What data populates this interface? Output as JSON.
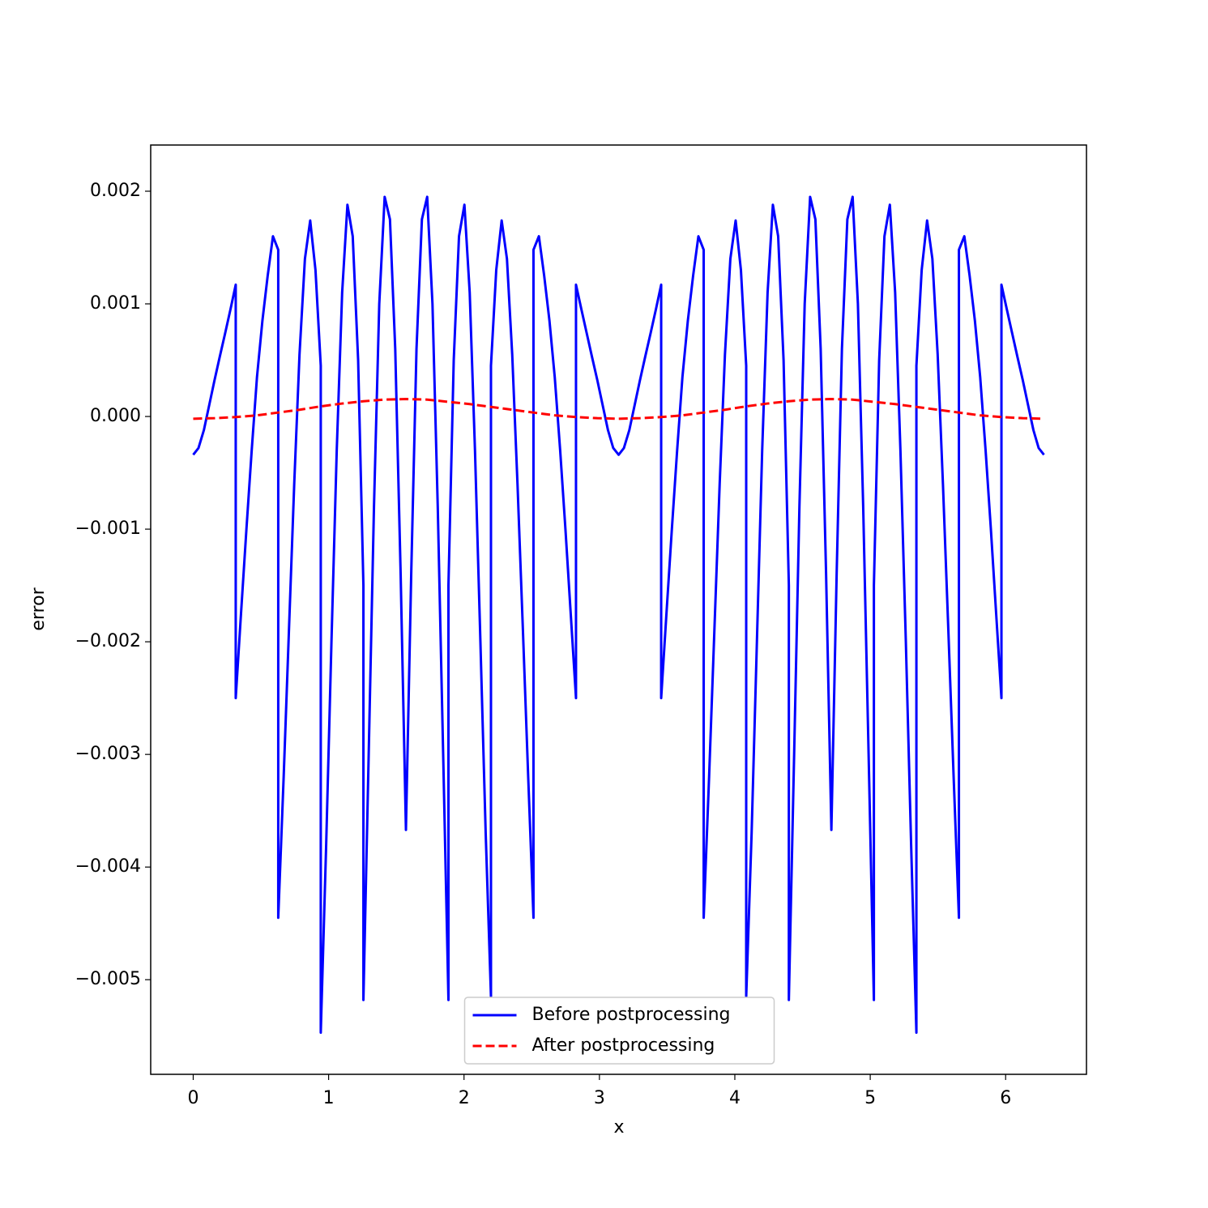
{
  "chart_data": {
    "type": "line",
    "xlabel": "x",
    "ylabel": "error",
    "xlim": [
      -0.314,
      6.597
    ],
    "ylim": [
      -0.00584,
      0.00241
    ],
    "xticks": [
      0,
      1,
      2,
      3,
      4,
      5,
      6
    ],
    "yticks": [
      {
        "value": -0.005,
        "label": "−0.005"
      },
      {
        "value": -0.004,
        "label": "−0.004"
      },
      {
        "value": -0.003,
        "label": "−0.003"
      },
      {
        "value": -0.002,
        "label": "−0.002"
      },
      {
        "value": -0.001,
        "label": "−0.001"
      },
      {
        "value": 0,
        "label": "0.000"
      },
      0.001,
      0.002
    ],
    "legend": "lower center",
    "series": [
      {
        "name": "Before postprocessing",
        "color": "#0000ff",
        "linestyle": "solid",
        "x": [
          0,
          0.039,
          0.079,
          0.118,
          0.157,
          0.196,
          0.236,
          0.275,
          0.314,
          0.314,
          0.353,
          0.393,
          0.432,
          0.471,
          0.511,
          0.55,
          0.589,
          0.628,
          0.628,
          0.668,
          0.707,
          0.746,
          0.785,
          0.825,
          0.864,
          0.903,
          0.942,
          0.942,
          0.982,
          1.021,
          1.06,
          1.1,
          1.139,
          1.178,
          1.218,
          1.257,
          1.257,
          1.296,
          1.335,
          1.374,
          1.414,
          1.453,
          1.492,
          1.532,
          1.571,
          1.571,
          1.61,
          1.649,
          1.689,
          1.728,
          1.767,
          1.806,
          1.846,
          1.885,
          1.885,
          1.924,
          1.963,
          2.003,
          2.042,
          2.081,
          2.121,
          2.16,
          2.199,
          2.199,
          2.238,
          2.278,
          2.317,
          2.356,
          2.395,
          2.435,
          2.474,
          2.513,
          2.513,
          2.553,
          2.592,
          2.631,
          2.67,
          2.71,
          2.749,
          2.788,
          2.827,
          2.827,
          2.867,
          2.906,
          2.945,
          2.985,
          3.024,
          3.063,
          3.102,
          3.142,
          3.142,
          3.181,
          3.221,
          3.26,
          3.299,
          3.338,
          3.378,
          3.417,
          3.456,
          3.456,
          3.495,
          3.535,
          3.574,
          3.613,
          3.653,
          3.692,
          3.731,
          3.77,
          3.77,
          3.81,
          3.849,
          3.888,
          3.927,
          3.967,
          4.006,
          4.045,
          4.084,
          4.084,
          4.124,
          4.163,
          4.202,
          4.242,
          4.281,
          4.32,
          4.36,
          4.399,
          4.399,
          4.438,
          4.477,
          4.516,
          4.556,
          4.595,
          4.634,
          4.674,
          4.713,
          4.713,
          4.752,
          4.791,
          4.831,
          4.87,
          4.909,
          4.948,
          4.988,
          5.027,
          5.027,
          5.066,
          5.105,
          5.145,
          5.184,
          5.223,
          5.263,
          5.302,
          5.341,
          5.341,
          5.38,
          5.42,
          5.459,
          5.498,
          5.537,
          5.577,
          5.616,
          5.655,
          5.655,
          5.695,
          5.734,
          5.773,
          5.812,
          5.852,
          5.891,
          5.93,
          5.969,
          5.969,
          6.009,
          6.048,
          6.087,
          6.127,
          6.166,
          6.205,
          6.244,
          6.283
        ],
        "values": [
          -0.00034,
          -0.00028,
          -0.00012,
          0.0001,
          0.00032,
          0.00053,
          0.00074,
          0.00095,
          0.00117,
          -0.0025,
          -0.00175,
          -0.001,
          -0.0003,
          0.00035,
          0.00085,
          0.00125,
          0.0016,
          0.00148,
          -0.00445,
          -0.0032,
          -0.0019,
          -0.0006,
          0.00055,
          0.0014,
          0.00174,
          0.0013,
          0.00045,
          -0.00547,
          -0.0038,
          -0.002,
          -0.0003,
          0.0011,
          0.00188,
          0.0016,
          0.0005,
          -0.0015,
          -0.00518,
          -0.003,
          -0.0008,
          0.001,
          0.00195,
          0.00175,
          0.0006,
          -0.0014,
          -0.00367,
          -0.00367,
          -0.0014,
          0.0006,
          0.00175,
          0.00195,
          0.001,
          -0.0008,
          -0.003,
          -0.00518,
          -0.0015,
          0.0005,
          0.0016,
          0.00188,
          0.0011,
          -0.0003,
          -0.002,
          -0.0037,
          -0.00515,
          0.00045,
          0.0013,
          0.00174,
          0.0014,
          0.00055,
          -0.0006,
          -0.0019,
          -0.0032,
          -0.00445,
          0.00148,
          0.0016,
          0.00125,
          0.00085,
          0.00035,
          -0.0003,
          -0.001,
          -0.00175,
          -0.0025,
          0.00117,
          0.00095,
          0.00074,
          0.00053,
          0.00032,
          0.0001,
          -0.00012,
          -0.00028,
          -0.00034,
          -0.00034,
          -0.00028,
          -0.00012,
          0.0001,
          0.00032,
          0.00053,
          0.00074,
          0.00095,
          0.00117,
          -0.0025,
          -0.00175,
          -0.001,
          -0.0003,
          0.00035,
          0.00085,
          0.00125,
          0.0016,
          0.00148,
          -0.00445,
          -0.0032,
          -0.0019,
          -0.0006,
          0.00055,
          0.0014,
          0.00174,
          0.0013,
          0.00045,
          -0.00515,
          -0.0037,
          -0.002,
          -0.0003,
          0.0011,
          0.00188,
          0.0016,
          0.0005,
          -0.0015,
          -0.00518,
          -0.003,
          -0.0008,
          0.001,
          0.00195,
          0.00175,
          0.0006,
          -0.0014,
          -0.00367,
          -0.00367,
          -0.0014,
          0.0006,
          0.00175,
          0.00195,
          0.001,
          -0.0008,
          -0.003,
          -0.00518,
          -0.0015,
          0.0005,
          0.0016,
          0.00188,
          0.0011,
          -0.0003,
          -0.002,
          -0.0038,
          -0.00547,
          0.00045,
          0.0013,
          0.00174,
          0.0014,
          0.00055,
          -0.0006,
          -0.0019,
          -0.0032,
          -0.00445,
          0.00148,
          0.0016,
          0.00125,
          0.00085,
          0.00035,
          -0.0003,
          -0.001,
          -0.00175,
          -0.0025,
          0.00117,
          0.00095,
          0.00074,
          0.00053,
          0.00032,
          0.0001,
          -0.00012,
          -0.00028,
          -0.00034
        ]
      },
      {
        "name": "After postprocessing",
        "color": "#ff0000",
        "linestyle": "dashed",
        "x": [
          0,
          0.157,
          0.314,
          0.471,
          0.628,
          0.785,
          0.942,
          1.1,
          1.257,
          1.414,
          1.571,
          1.728,
          1.885,
          2.042,
          2.199,
          2.356,
          2.513,
          2.67,
          2.827,
          2.985,
          3.142,
          3.299,
          3.456,
          3.613,
          3.77,
          3.927,
          4.084,
          4.241,
          4.398,
          4.555,
          4.712,
          4.869,
          5.027,
          5.184,
          5.341,
          5.498,
          5.655,
          5.812,
          5.969,
          6.126,
          6.283
        ],
        "values": [
          -2e-05,
          -1.5e-05,
          -5e-06,
          1e-05,
          3.5e-05,
          6e-05,
          9e-05,
          0.000115,
          0.000135,
          0.00015,
          0.000155,
          0.00015,
          0.00013,
          0.00011,
          8.5e-05,
          6e-05,
          3.5e-05,
          1e-05,
          -5e-06,
          -1.5e-05,
          -2e-05,
          -1.5e-05,
          -5e-06,
          1e-05,
          3.5e-05,
          6e-05,
          9e-05,
          0.000115,
          0.000135,
          0.00015,
          0.000155,
          0.00015,
          0.00013,
          0.00011,
          8.5e-05,
          6e-05,
          3.5e-05,
          1e-05,
          -5e-06,
          -1.5e-05,
          -2e-05
        ]
      }
    ]
  }
}
